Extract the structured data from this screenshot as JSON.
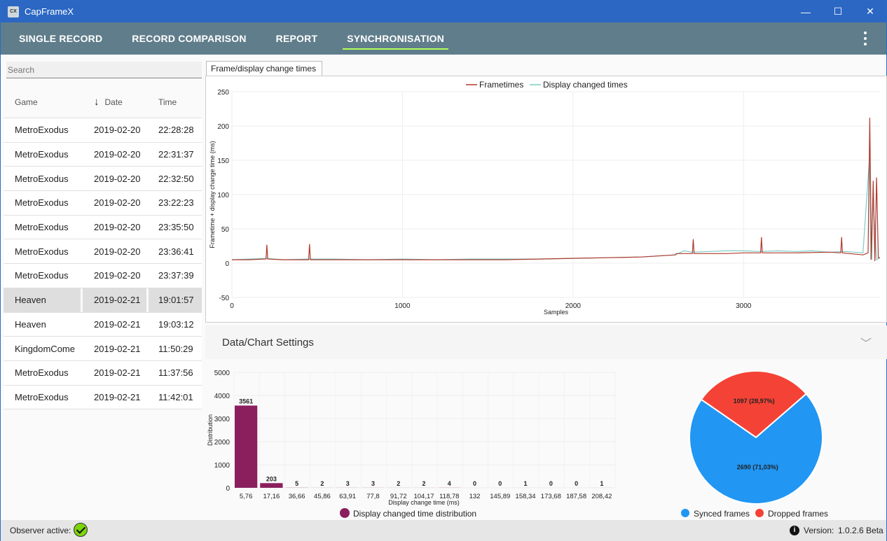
{
  "app": {
    "title": "CapFrameX",
    "icon_text": "CX"
  },
  "window_controls": {
    "minimize": "—",
    "maximize": "☐",
    "close": "✕"
  },
  "nav": {
    "tabs": [
      {
        "label": "SINGLE RECORD"
      },
      {
        "label": "RECORD COMPARISON"
      },
      {
        "label": "REPORT"
      },
      {
        "label": "SYNCHRONISATION"
      }
    ],
    "active_tab": "SYNCHRONISATION"
  },
  "search": {
    "placeholder": "Search",
    "value": ""
  },
  "records": {
    "columns": [
      "Game",
      "Date",
      "Time"
    ],
    "sort_arrow": "↓",
    "rows": [
      {
        "game": "MetroExodus",
        "date": "2019-02-20",
        "time": "22:28:28"
      },
      {
        "game": "MetroExodus",
        "date": "2019-02-20",
        "time": "22:31:37"
      },
      {
        "game": "MetroExodus",
        "date": "2019-02-20",
        "time": "22:32:50"
      },
      {
        "game": "MetroExodus",
        "date": "2019-02-20",
        "time": "23:22:23"
      },
      {
        "game": "MetroExodus",
        "date": "2019-02-20",
        "time": "23:35:50"
      },
      {
        "game": "MetroExodus",
        "date": "2019-02-20",
        "time": "23:36:41"
      },
      {
        "game": "MetroExodus",
        "date": "2019-02-20",
        "time": "23:37:39"
      },
      {
        "game": "Heaven",
        "date": "2019-02-21",
        "time": "19:01:57"
      },
      {
        "game": "Heaven",
        "date": "2019-02-21",
        "time": "19:03:12"
      },
      {
        "game": "KingdomCome",
        "date": "2019-02-21",
        "time": "11:50:29"
      },
      {
        "game": "MetroExodus",
        "date": "2019-02-21",
        "time": "11:37:56"
      },
      {
        "game": "MetroExodus",
        "date": "2019-02-21",
        "time": "11:42:01"
      }
    ],
    "selected_index": 7
  },
  "chart_tab": {
    "label": "Frame/display change times"
  },
  "settings": {
    "title": "Data/Chart Settings",
    "chevron": "﹀"
  },
  "colors": {
    "frametimes": "#b03a2e",
    "display_changed": "#80cbc4",
    "histogram": "#8b1f5e",
    "synced": "#2196f3",
    "dropped": "#f44336"
  },
  "chart_data": [
    {
      "type": "line",
      "title": "",
      "xlabel": "Samples",
      "ylabel": "Frametime + display change time (ms)",
      "xlim": [
        0,
        3800
      ],
      "ylim": [
        -50,
        250
      ],
      "xticks": [
        0,
        1000,
        2000,
        3000
      ],
      "yticks": [
        -50,
        0,
        50,
        100,
        150,
        200,
        250
      ],
      "grid": true,
      "legend_position": "top-center",
      "series": [
        {
          "name": "Frametimes",
          "x": [
            0,
            100,
            200,
            205,
            210,
            300,
            450,
            455,
            460,
            600,
            800,
            1000,
            1200,
            1400,
            1600,
            1800,
            2000,
            2200,
            2400,
            2600,
            2605,
            2700,
            2705,
            2710,
            2900,
            3000,
            3100,
            3105,
            3110,
            3300,
            3500,
            3570,
            3575,
            3580,
            3700,
            3730,
            3740,
            3750,
            3760,
            3770,
            3780,
            3790,
            3800
          ],
          "values": [
            5,
            5,
            6,
            27,
            6,
            5,
            5,
            28,
            5,
            5,
            5,
            5,
            5,
            5,
            5,
            6,
            7,
            8,
            9,
            12,
            14,
            14,
            35,
            14,
            14,
            15,
            15,
            38,
            15,
            15,
            16,
            15,
            38,
            15,
            12,
            15,
            212,
            5,
            120,
            3,
            125,
            8,
            8
          ]
        },
        {
          "name": "Display changed times",
          "x": [
            0,
            100,
            200,
            300,
            450,
            600,
            800,
            1000,
            1200,
            1400,
            1600,
            1800,
            2000,
            2200,
            2400,
            2600,
            2650,
            2700,
            2800,
            2900,
            3000,
            3100,
            3200,
            3300,
            3400,
            3500,
            3600,
            3700,
            3740,
            3745,
            3760,
            3780,
            3800
          ],
          "values": [
            5,
            6,
            7,
            5,
            6,
            6,
            5,
            6,
            5,
            6,
            6,
            6,
            7,
            8,
            9,
            12,
            18,
            16,
            17,
            18,
            18,
            17,
            18,
            17,
            18,
            16,
            17,
            15,
            160,
            5,
            90,
            5,
            8
          ]
        }
      ]
    },
    {
      "type": "bar",
      "title": "",
      "xlabel": "Display change time (ms)",
      "ylabel": "Distribution",
      "ylim": [
        0,
        5000
      ],
      "yticks": [
        0,
        1000,
        2000,
        3000,
        4000,
        5000
      ],
      "categories": [
        "5,76",
        "17,16",
        "36,66",
        "45,86",
        "63,91",
        "77,8",
        "91,72",
        "104,17",
        "118,78",
        "132",
        "145,89",
        "158,34",
        "173,68",
        "187,58",
        "208,42"
      ],
      "values": [
        3561,
        203,
        5,
        2,
        3,
        3,
        2,
        2,
        4,
        0,
        0,
        1,
        0,
        0,
        1
      ],
      "legend": "Display changed time distribution"
    },
    {
      "type": "pie",
      "title": "",
      "slices": [
        {
          "name": "Synced frames",
          "value": 2690,
          "label": "2690 (71,03%)"
        },
        {
          "name": "Dropped frames",
          "value": 1097,
          "label": "1097 (28,97%)"
        }
      ]
    }
  ],
  "status": {
    "observer_label": "Observer active:",
    "version_label": "Version:",
    "version_value": "1.0.2.6 Beta",
    "info_icon": "i"
  }
}
